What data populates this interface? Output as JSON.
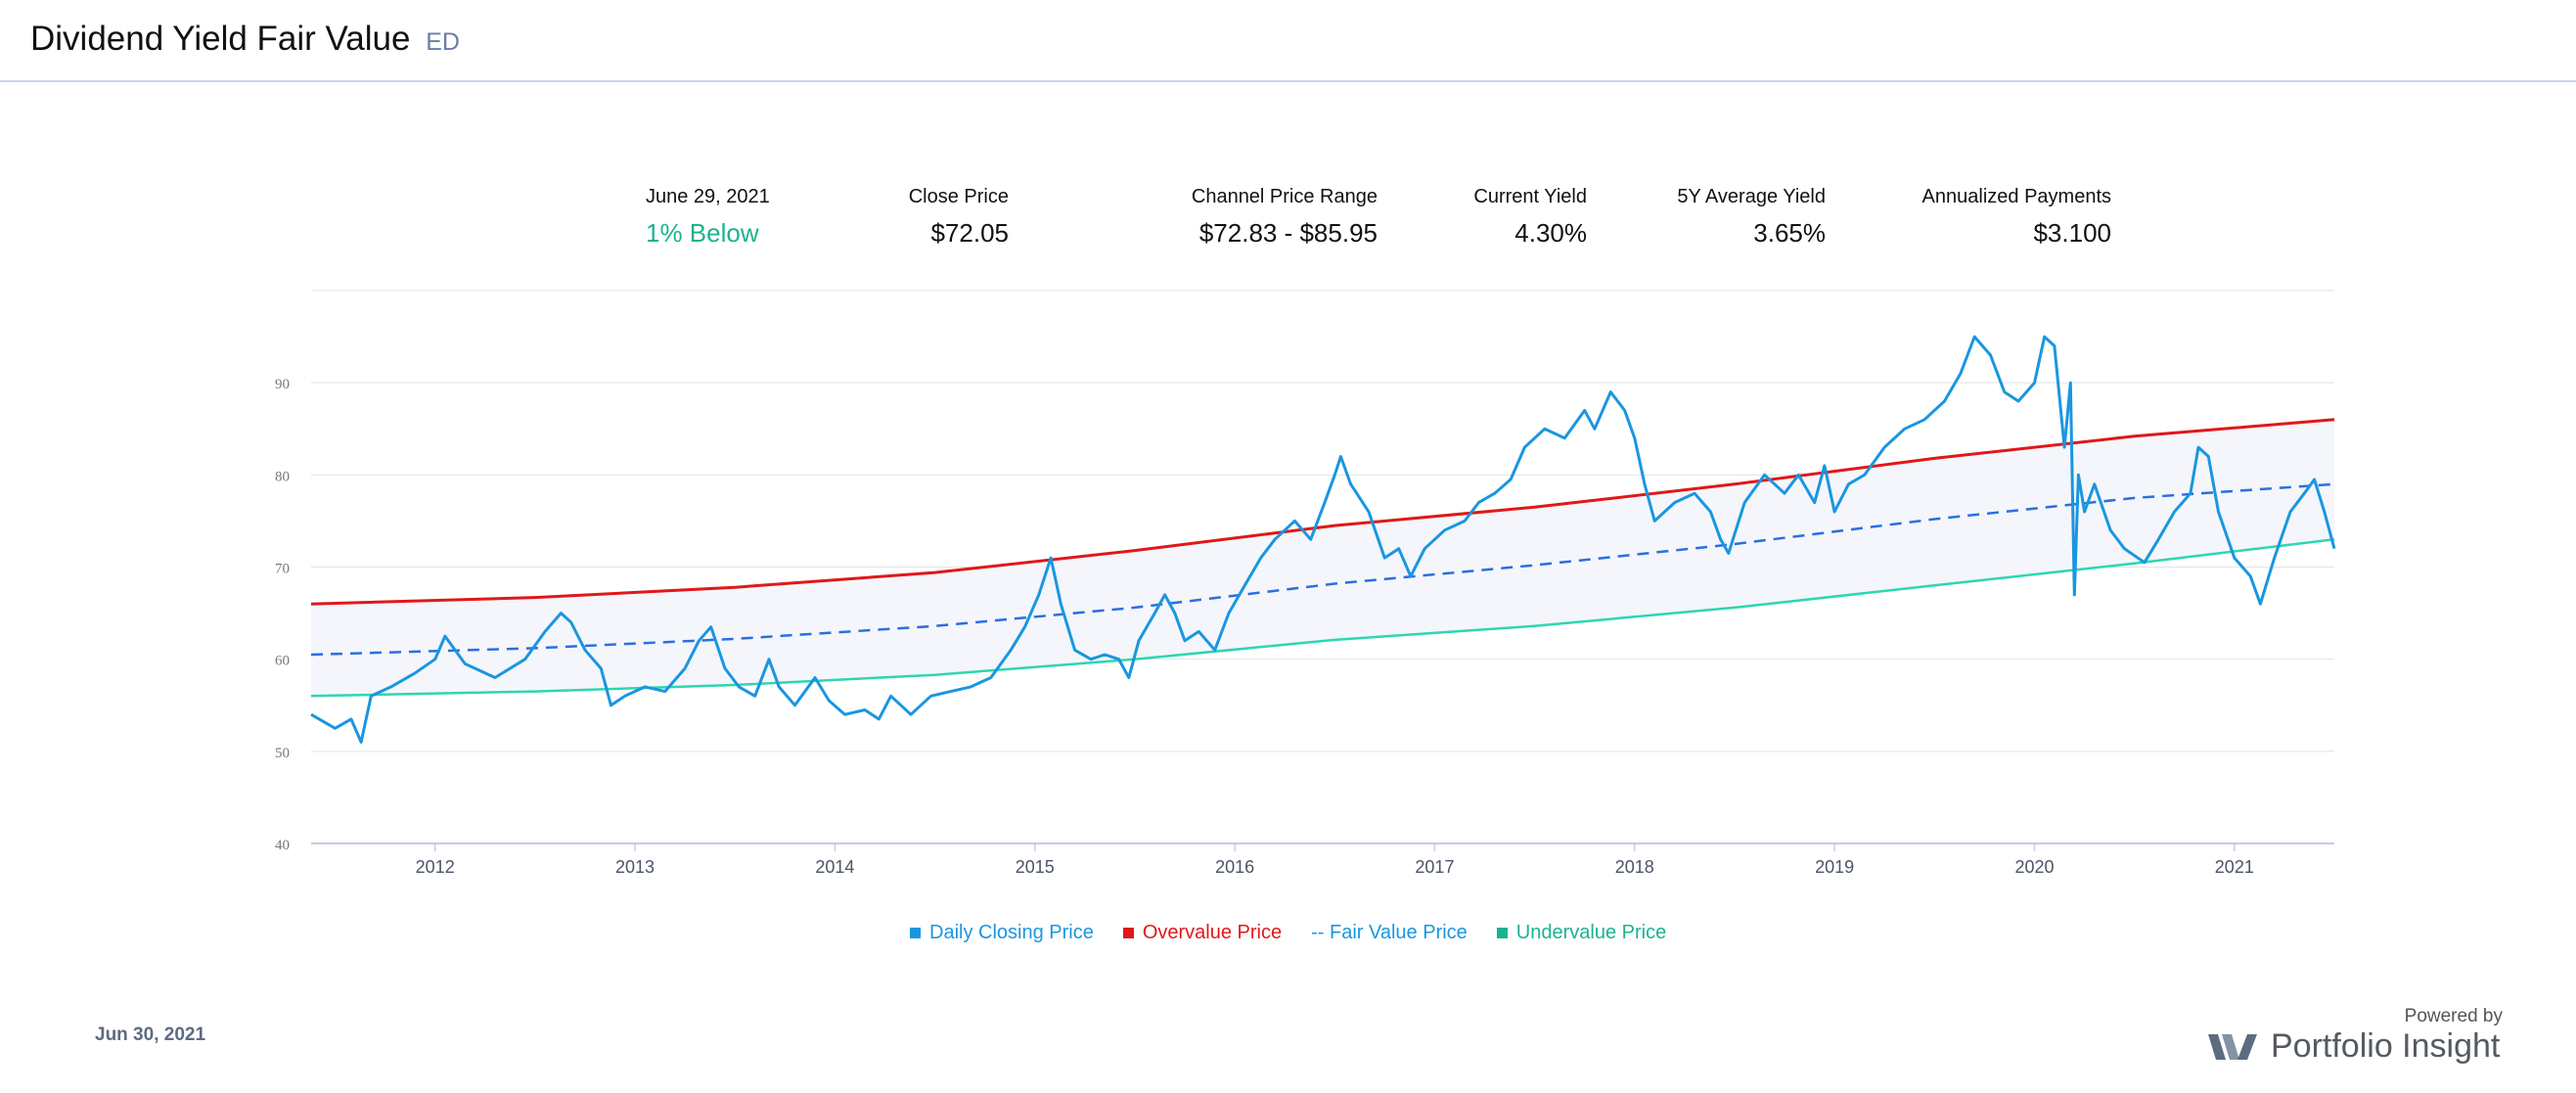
{
  "header": {
    "title": "Dividend Yield Fair Value",
    "ticker": "ED"
  },
  "stats": {
    "date_label": "June 29, 2021",
    "status": "1%  Below",
    "close_label": "Close Price",
    "close_value": "$72.05",
    "range_label": "Channel Price Range",
    "range_value": "$72.83 - $85.95",
    "yield_label": "Current Yield",
    "yield_value": "4.30%",
    "avg_label": "5Y Average Yield",
    "avg_value": "3.65%",
    "payments_label": "Annualized Payments",
    "payments_value": "$3.100"
  },
  "legend": {
    "daily": "Daily Closing Price",
    "over": "Overvalue Price",
    "fair": "-- Fair Value Price",
    "under": "Undervalue Price"
  },
  "footer": {
    "date": "Jun 30, 2021",
    "powered": "Powered by",
    "brand": "Portfolio Insight"
  },
  "colors": {
    "daily": "#1a96e0",
    "over": "#e01818",
    "fair": "#2a6fe0",
    "under": "#2ed6b0",
    "band": "#f4f6fb",
    "grid": "#dde3ec"
  },
  "chart_data": {
    "type": "line",
    "x_range": [
      2011.38,
      2021.5
    ],
    "ylim": [
      40,
      100
    ],
    "yticks": [
      40,
      50,
      60,
      70,
      80,
      90
    ],
    "xticks": [
      2012,
      2013,
      2014,
      2015,
      2016,
      2017,
      2018,
      2019,
      2020,
      2021
    ],
    "series": [
      {
        "name": "Daily Closing Price",
        "points": [
          [
            2011.38,
            54
          ],
          [
            2011.5,
            52.5
          ],
          [
            2011.58,
            53.5
          ],
          [
            2011.63,
            51
          ],
          [
            2011.68,
            56
          ],
          [
            2011.78,
            57
          ],
          [
            2011.9,
            58.5
          ],
          [
            2012.0,
            60
          ],
          [
            2012.05,
            62.5
          ],
          [
            2012.15,
            59.5
          ],
          [
            2012.3,
            58
          ],
          [
            2012.45,
            60
          ],
          [
            2012.55,
            63
          ],
          [
            2012.63,
            65
          ],
          [
            2012.68,
            64
          ],
          [
            2012.75,
            61
          ],
          [
            2012.83,
            59
          ],
          [
            2012.88,
            55
          ],
          [
            2012.95,
            56
          ],
          [
            2013.05,
            57
          ],
          [
            2013.15,
            56.5
          ],
          [
            2013.25,
            59
          ],
          [
            2013.32,
            62
          ],
          [
            2013.38,
            63.5
          ],
          [
            2013.45,
            59
          ],
          [
            2013.52,
            57
          ],
          [
            2013.6,
            56
          ],
          [
            2013.67,
            60
          ],
          [
            2013.72,
            57
          ],
          [
            2013.8,
            55
          ],
          [
            2013.9,
            58
          ],
          [
            2013.97,
            55.5
          ],
          [
            2014.05,
            54
          ],
          [
            2014.15,
            54.5
          ],
          [
            2014.22,
            53.5
          ],
          [
            2014.28,
            56
          ],
          [
            2014.38,
            54
          ],
          [
            2014.48,
            56
          ],
          [
            2014.58,
            56.5
          ],
          [
            2014.68,
            57
          ],
          [
            2014.78,
            58
          ],
          [
            2014.88,
            61
          ],
          [
            2014.95,
            63.5
          ],
          [
            2015.02,
            67
          ],
          [
            2015.08,
            71
          ],
          [
            2015.13,
            66
          ],
          [
            2015.2,
            61
          ],
          [
            2015.28,
            60
          ],
          [
            2015.35,
            60.5
          ],
          [
            2015.42,
            60
          ],
          [
            2015.47,
            58
          ],
          [
            2015.52,
            62
          ],
          [
            2015.6,
            65
          ],
          [
            2015.65,
            67
          ],
          [
            2015.7,
            65
          ],
          [
            2015.75,
            62
          ],
          [
            2015.82,
            63
          ],
          [
            2015.9,
            61
          ],
          [
            2015.97,
            65
          ],
          [
            2016.05,
            68
          ],
          [
            2016.13,
            71
          ],
          [
            2016.2,
            73
          ],
          [
            2016.3,
            75
          ],
          [
            2016.38,
            73
          ],
          [
            2016.45,
            77
          ],
          [
            2016.5,
            80
          ],
          [
            2016.53,
            82
          ],
          [
            2016.58,
            79
          ],
          [
            2016.67,
            76
          ],
          [
            2016.75,
            71
          ],
          [
            2016.82,
            72
          ],
          [
            2016.88,
            69
          ],
          [
            2016.95,
            72
          ],
          [
            2017.05,
            74
          ],
          [
            2017.15,
            75
          ],
          [
            2017.22,
            77
          ],
          [
            2017.3,
            78
          ],
          [
            2017.38,
            79.5
          ],
          [
            2017.45,
            83
          ],
          [
            2017.55,
            85
          ],
          [
            2017.65,
            84
          ],
          [
            2017.75,
            87
          ],
          [
            2017.8,
            85
          ],
          [
            2017.88,
            89
          ],
          [
            2017.95,
            87
          ],
          [
            2018.0,
            84
          ],
          [
            2018.05,
            79
          ],
          [
            2018.1,
            75
          ],
          [
            2018.2,
            77
          ],
          [
            2018.3,
            78
          ],
          [
            2018.38,
            76
          ],
          [
            2018.43,
            73
          ],
          [
            2018.47,
            71.5
          ],
          [
            2018.55,
            77
          ],
          [
            2018.65,
            80
          ],
          [
            2018.75,
            78
          ],
          [
            2018.82,
            80
          ],
          [
            2018.9,
            77
          ],
          [
            2018.95,
            81
          ],
          [
            2019.0,
            76
          ],
          [
            2019.07,
            79
          ],
          [
            2019.15,
            80
          ],
          [
            2019.25,
            83
          ],
          [
            2019.35,
            85
          ],
          [
            2019.45,
            86
          ],
          [
            2019.55,
            88
          ],
          [
            2019.63,
            91
          ],
          [
            2019.7,
            95
          ],
          [
            2019.78,
            93
          ],
          [
            2019.85,
            89
          ],
          [
            2019.92,
            88
          ],
          [
            2020.0,
            90
          ],
          [
            2020.05,
            95
          ],
          [
            2020.1,
            94
          ],
          [
            2020.15,
            83
          ],
          [
            2020.18,
            90
          ],
          [
            2020.2,
            67
          ],
          [
            2020.22,
            80
          ],
          [
            2020.25,
            76
          ],
          [
            2020.3,
            79
          ],
          [
            2020.38,
            74
          ],
          [
            2020.45,
            72
          ],
          [
            2020.55,
            70.5
          ],
          [
            2020.62,
            73
          ],
          [
            2020.7,
            76
          ],
          [
            2020.78,
            78
          ],
          [
            2020.82,
            83
          ],
          [
            2020.87,
            82
          ],
          [
            2020.92,
            76
          ],
          [
            2021.0,
            71
          ],
          [
            2021.08,
            69
          ],
          [
            2021.13,
            66
          ],
          [
            2021.2,
            71
          ],
          [
            2021.28,
            76
          ],
          [
            2021.35,
            78
          ],
          [
            2021.4,
            79.5
          ],
          [
            2021.45,
            76
          ],
          [
            2021.5,
            72
          ]
        ]
      },
      {
        "name": "Overvalue Price",
        "points": [
          [
            2011.38,
            66
          ],
          [
            2012.5,
            66.7
          ],
          [
            2013.5,
            67.8
          ],
          [
            2014.5,
            69.4
          ],
          [
            2015.5,
            71.8
          ],
          [
            2016.5,
            74.5
          ],
          [
            2017.5,
            76.5
          ],
          [
            2018.5,
            79
          ],
          [
            2019.5,
            81.8
          ],
          [
            2020.5,
            84.2
          ],
          [
            2021.5,
            86
          ]
        ]
      },
      {
        "name": "Fair Value Price",
        "points": [
          [
            2011.38,
            60.5
          ],
          [
            2012.5,
            61.2
          ],
          [
            2013.5,
            62.2
          ],
          [
            2014.5,
            63.6
          ],
          [
            2015.5,
            65.6
          ],
          [
            2016.5,
            68.2
          ],
          [
            2017.5,
            70.2
          ],
          [
            2018.5,
            72.5
          ],
          [
            2019.5,
            75.2
          ],
          [
            2020.5,
            77.5
          ],
          [
            2021.5,
            79
          ]
        ]
      },
      {
        "name": "Undervalue Price",
        "points": [
          [
            2011.38,
            56
          ],
          [
            2012.5,
            56.5
          ],
          [
            2013.5,
            57.2
          ],
          [
            2014.5,
            58.3
          ],
          [
            2015.5,
            60
          ],
          [
            2016.5,
            62.1
          ],
          [
            2017.5,
            63.6
          ],
          [
            2018.5,
            65.6
          ],
          [
            2019.5,
            68
          ],
          [
            2020.5,
            70.4
          ],
          [
            2021.5,
            73
          ]
        ]
      }
    ]
  }
}
